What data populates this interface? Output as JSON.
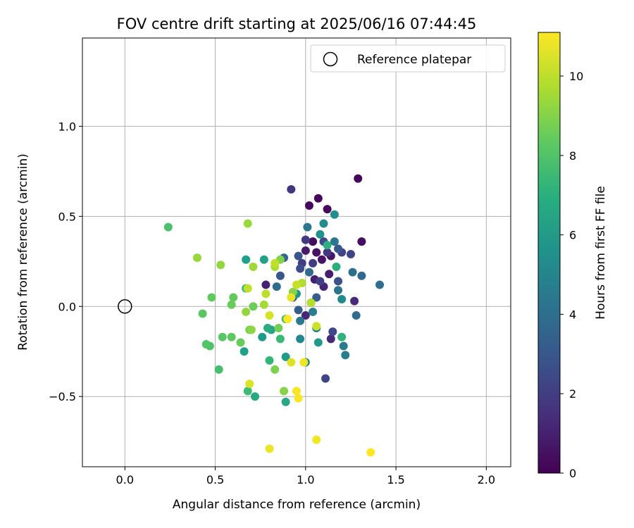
{
  "chart_data": {
    "type": "scatter",
    "title": "FOV centre drift starting at 2025/06/16 07:44:45",
    "xlabel": "Angular distance from reference (arcmin)",
    "ylabel": "Rotation from reference (arcmin)",
    "xlim": [
      -0.235,
      2.135
    ],
    "ylim": [
      -0.89,
      1.49
    ],
    "x_ticks": [
      "0.0",
      "0.5",
      "1.0",
      "1.5",
      "2.0"
    ],
    "y_ticks": [
      "1.0",
      "0.5",
      "0.0",
      "−0.5"
    ],
    "x_tick_values": [
      0,
      0.5,
      1.0,
      1.5,
      2.0
    ],
    "y_tick_values": [
      1.0,
      0.5,
      0.0,
      -0.5
    ],
    "grid": true,
    "legend": {
      "placement": "top-right",
      "entry": "Reference platepar"
    },
    "reference": {
      "x": 0.0,
      "y": 0.0
    },
    "colorbar": {
      "label": "Hours from first FF file",
      "range": [
        0,
        11.1
      ],
      "ticks": [
        "0",
        "2",
        "4",
        "6",
        "8",
        "10"
      ],
      "tick_values": [
        0,
        2,
        4,
        6,
        8,
        10
      ],
      "colormap": "viridis"
    },
    "points": [
      {
        "x": 1.29,
        "y": 0.71,
        "h": 0.2
      },
      {
        "x": 1.07,
        "y": 0.6,
        "h": 0.2
      },
      {
        "x": 1.12,
        "y": 0.54,
        "h": 0.3
      },
      {
        "x": 1.02,
        "y": 0.56,
        "h": 0.3
      },
      {
        "x": 1.31,
        "y": 0.36,
        "h": 0.4
      },
      {
        "x": 1.04,
        "y": 0.36,
        "h": 0.4
      },
      {
        "x": 1.06,
        "y": 0.3,
        "h": 0.5
      },
      {
        "x": 1.09,
        "y": 0.26,
        "h": 0.6
      },
      {
        "x": 1.14,
        "y": 0.28,
        "h": 0.7
      },
      {
        "x": 1.0,
        "y": 0.31,
        "h": 0.8
      },
      {
        "x": 1.13,
        "y": 0.18,
        "h": 0.9
      },
      {
        "x": 1.05,
        "y": 0.15,
        "h": 1.0
      },
      {
        "x": 0.78,
        "y": 0.12,
        "h": 1.0
      },
      {
        "x": 1.1,
        "y": 0.11,
        "h": 1.1
      },
      {
        "x": 1.03,
        "y": 0.02,
        "h": 1.2
      },
      {
        "x": 1.0,
        "y": -0.05,
        "h": 1.2
      },
      {
        "x": 1.14,
        "y": -0.18,
        "h": 1.3
      },
      {
        "x": 1.27,
        "y": 0.03,
        "h": 1.3
      },
      {
        "x": 0.92,
        "y": 0.65,
        "h": 1.8
      },
      {
        "x": 1.12,
        "y": 0.3,
        "h": 1.8
      },
      {
        "x": 1.0,
        "y": 0.37,
        "h": 1.9
      },
      {
        "x": 1.04,
        "y": 0.24,
        "h": 2.0
      },
      {
        "x": 0.98,
        "y": 0.24,
        "h": 2.0
      },
      {
        "x": 1.08,
        "y": 0.14,
        "h": 2.1
      },
      {
        "x": 1.2,
        "y": 0.3,
        "h": 2.2
      },
      {
        "x": 1.25,
        "y": 0.29,
        "h": 2.3
      },
      {
        "x": 1.11,
        "y": -0.4,
        "h": 2.3
      },
      {
        "x": 1.15,
        "y": -0.14,
        "h": 2.4
      },
      {
        "x": 1.1,
        "y": 0.36,
        "h": 2.5
      },
      {
        "x": 0.97,
        "y": 0.21,
        "h": 2.6
      },
      {
        "x": 1.18,
        "y": 0.14,
        "h": 2.7
      },
      {
        "x": 0.96,
        "y": 0.28,
        "h": 2.9
      },
      {
        "x": 0.86,
        "y": 0.17,
        "h": 3.0
      },
      {
        "x": 0.93,
        "y": 0.05,
        "h": 3.0
      },
      {
        "x": 1.18,
        "y": 0.32,
        "h": 3.1
      },
      {
        "x": 0.96,
        "y": -0.02,
        "h": 3.3
      },
      {
        "x": 1.06,
        "y": 0.05,
        "h": 3.3
      },
      {
        "x": 0.88,
        "y": 0.27,
        "h": 3.6
      },
      {
        "x": 1.31,
        "y": 0.17,
        "h": 3.7
      },
      {
        "x": 1.02,
        "y": 0.19,
        "h": 3.8
      },
      {
        "x": 0.84,
        "y": 0.11,
        "h": 3.9
      },
      {
        "x": 1.28,
        "y": -0.05,
        "h": 3.9
      },
      {
        "x": 1.41,
        "y": 0.12,
        "h": 4.0
      },
      {
        "x": 1.26,
        "y": 0.19,
        "h": 4.1
      },
      {
        "x": 1.18,
        "y": 0.09,
        "h": 4.2
      },
      {
        "x": 1.01,
        "y": 0.44,
        "h": 4.3
      },
      {
        "x": 1.16,
        "y": 0.36,
        "h": 4.4
      },
      {
        "x": 0.97,
        "y": -0.08,
        "h": 4.5
      },
      {
        "x": 1.21,
        "y": -0.22,
        "h": 4.6
      },
      {
        "x": 1.04,
        "y": -0.03,
        "h": 4.7
      },
      {
        "x": 1.22,
        "y": -0.27,
        "h": 4.8
      },
      {
        "x": 1.06,
        "y": -0.12,
        "h": 5.0
      },
      {
        "x": 0.97,
        "y": -0.18,
        "h": 5.1
      },
      {
        "x": 1.0,
        "y": -0.31,
        "h": 5.2
      },
      {
        "x": 1.2,
        "y": 0.04,
        "h": 5.3
      },
      {
        "x": 1.1,
        "y": 0.46,
        "h": 5.4
      },
      {
        "x": 1.16,
        "y": 0.51,
        "h": 5.5
      },
      {
        "x": 1.08,
        "y": 0.4,
        "h": 5.6
      },
      {
        "x": 0.95,
        "y": 0.07,
        "h": 5.8
      },
      {
        "x": 1.07,
        "y": -0.2,
        "h": 6.0
      },
      {
        "x": 0.76,
        "y": -0.17,
        "h": 6.0
      },
      {
        "x": 0.89,
        "y": -0.28,
        "h": 6.1
      },
      {
        "x": 0.66,
        "y": -0.25,
        "h": 6.2
      },
      {
        "x": 0.67,
        "y": 0.26,
        "h": 6.2
      },
      {
        "x": 0.77,
        "y": 0.26,
        "h": 6.3
      },
      {
        "x": 0.81,
        "y": -0.13,
        "h": 6.5
      },
      {
        "x": 0.89,
        "y": -0.53,
        "h": 6.6
      },
      {
        "x": 0.72,
        "y": -0.5,
        "h": 6.7
      },
      {
        "x": 0.79,
        "y": -0.12,
        "h": 6.8
      },
      {
        "x": 1.17,
        "y": 0.22,
        "h": 6.9
      },
      {
        "x": 1.12,
        "y": 0.34,
        "h": 7.0
      },
      {
        "x": 1.2,
        "y": -0.17,
        "h": 7.1
      },
      {
        "x": 0.8,
        "y": -0.3,
        "h": 7.3
      },
      {
        "x": 0.67,
        "y": 0.1,
        "h": 7.4
      },
      {
        "x": 0.86,
        "y": -0.18,
        "h": 7.5
      },
      {
        "x": 0.68,
        "y": -0.47,
        "h": 7.6
      },
      {
        "x": 0.89,
        "y": -0.07,
        "h": 7.7
      },
      {
        "x": 0.52,
        "y": -0.35,
        "h": 7.8
      },
      {
        "x": 0.24,
        "y": 0.44,
        "h": 7.9
      },
      {
        "x": 0.47,
        "y": -0.22,
        "h": 8.0
      },
      {
        "x": 0.45,
        "y": -0.21,
        "h": 8.1
      },
      {
        "x": 0.54,
        "y": -0.17,
        "h": 8.2
      },
      {
        "x": 0.43,
        "y": -0.04,
        "h": 8.2
      },
      {
        "x": 0.59,
        "y": -0.17,
        "h": 8.3
      },
      {
        "x": 0.48,
        "y": 0.05,
        "h": 8.4
      },
      {
        "x": 0.6,
        "y": 0.05,
        "h": 8.4
      },
      {
        "x": 0.59,
        "y": 0.01,
        "h": 8.5
      },
      {
        "x": 0.64,
        "y": -0.2,
        "h": 8.5
      },
      {
        "x": 0.71,
        "y": 0.0,
        "h": 8.6
      },
      {
        "x": 0.69,
        "y": -0.13,
        "h": 8.7
      },
      {
        "x": 0.85,
        "y": -0.12,
        "h": 8.7
      },
      {
        "x": 0.83,
        "y": -0.35,
        "h": 8.9
      },
      {
        "x": 0.86,
        "y": 0.26,
        "h": 9.0
      },
      {
        "x": 0.88,
        "y": -0.47,
        "h": 9.1
      },
      {
        "x": 0.93,
        "y": 0.08,
        "h": 9.1
      },
      {
        "x": 0.7,
        "y": -0.13,
        "h": 9.2
      },
      {
        "x": 0.67,
        "y": -0.03,
        "h": 9.3
      },
      {
        "x": 0.53,
        "y": 0.23,
        "h": 9.3
      },
      {
        "x": 0.68,
        "y": 0.46,
        "h": 9.4
      },
      {
        "x": 0.4,
        "y": 0.27,
        "h": 9.4
      },
      {
        "x": 0.71,
        "y": 0.22,
        "h": 9.5
      },
      {
        "x": 0.77,
        "y": 0.01,
        "h": 9.6
      },
      {
        "x": 0.83,
        "y": 0.22,
        "h": 9.7
      },
      {
        "x": 0.98,
        "y": 0.13,
        "h": 9.8
      },
      {
        "x": 1.03,
        "y": 0.02,
        "h": 9.9
      },
      {
        "x": 0.78,
        "y": 0.07,
        "h": 10.0
      },
      {
        "x": 0.68,
        "y": 0.1,
        "h": 10.1
      },
      {
        "x": 0.83,
        "y": 0.24,
        "h": 10.1
      },
      {
        "x": 0.95,
        "y": 0.12,
        "h": 10.2
      },
      {
        "x": 1.06,
        "y": -0.11,
        "h": 10.3
      },
      {
        "x": 0.8,
        "y": -0.05,
        "h": 10.4
      },
      {
        "x": 0.69,
        "y": -0.43,
        "h": 10.5
      },
      {
        "x": 0.92,
        "y": -0.31,
        "h": 10.6
      },
      {
        "x": 0.92,
        "y": 0.05,
        "h": 10.7
      },
      {
        "x": 0.8,
        "y": -0.79,
        "h": 10.8
      },
      {
        "x": 0.99,
        "y": -0.31,
        "h": 10.9
      },
      {
        "x": 1.06,
        "y": -0.74,
        "h": 10.9
      },
      {
        "x": 0.95,
        "y": -0.47,
        "h": 11.0
      },
      {
        "x": 0.96,
        "y": -0.51,
        "h": 11.0
      },
      {
        "x": 1.36,
        "y": -0.81,
        "h": 11.1
      },
      {
        "x": 0.9,
        "y": -0.07,
        "h": 11.1
      }
    ]
  }
}
